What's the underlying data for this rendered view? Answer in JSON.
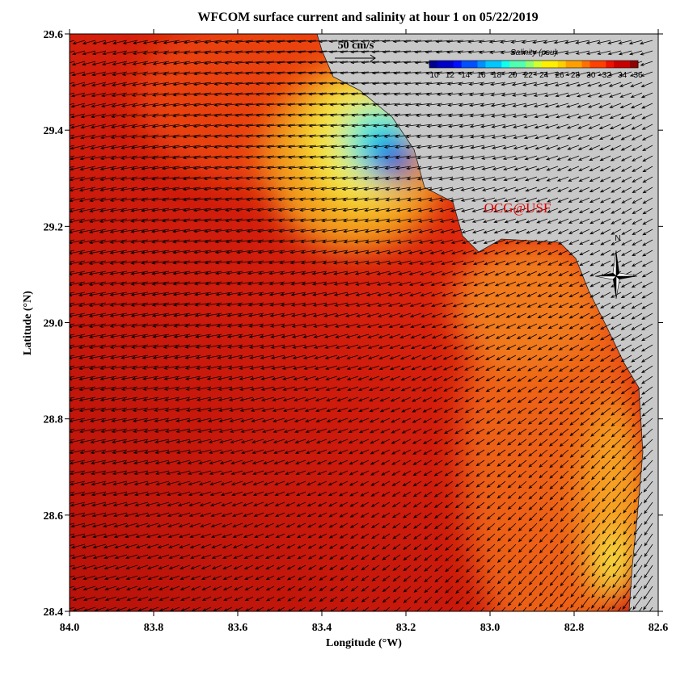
{
  "title": "WFCOM surface current and salinity at hour 1 on 05/22/2019",
  "x_axis": {
    "label": "Longitude (°W)",
    "ticks": [
      "84.0",
      "83.8",
      "83.6",
      "83.4",
      "83.2",
      "83.0",
      "82.8",
      "82.6"
    ]
  },
  "y_axis": {
    "label": "Latitude (°N)",
    "ticks": [
      "29.6",
      "29.4",
      "29.2",
      "29.0",
      "28.8",
      "28.6",
      "28.4"
    ]
  },
  "colorbar": {
    "title": "Salinity (psu)",
    "ticks": [
      "10",
      "12",
      "14",
      "16",
      "18",
      "20",
      "22",
      "24",
      "26",
      "28",
      "30",
      "32",
      "34",
      "36"
    ]
  },
  "scale_label": "50 cm/s",
  "watermark": "OCG@USF",
  "compass": "N"
}
